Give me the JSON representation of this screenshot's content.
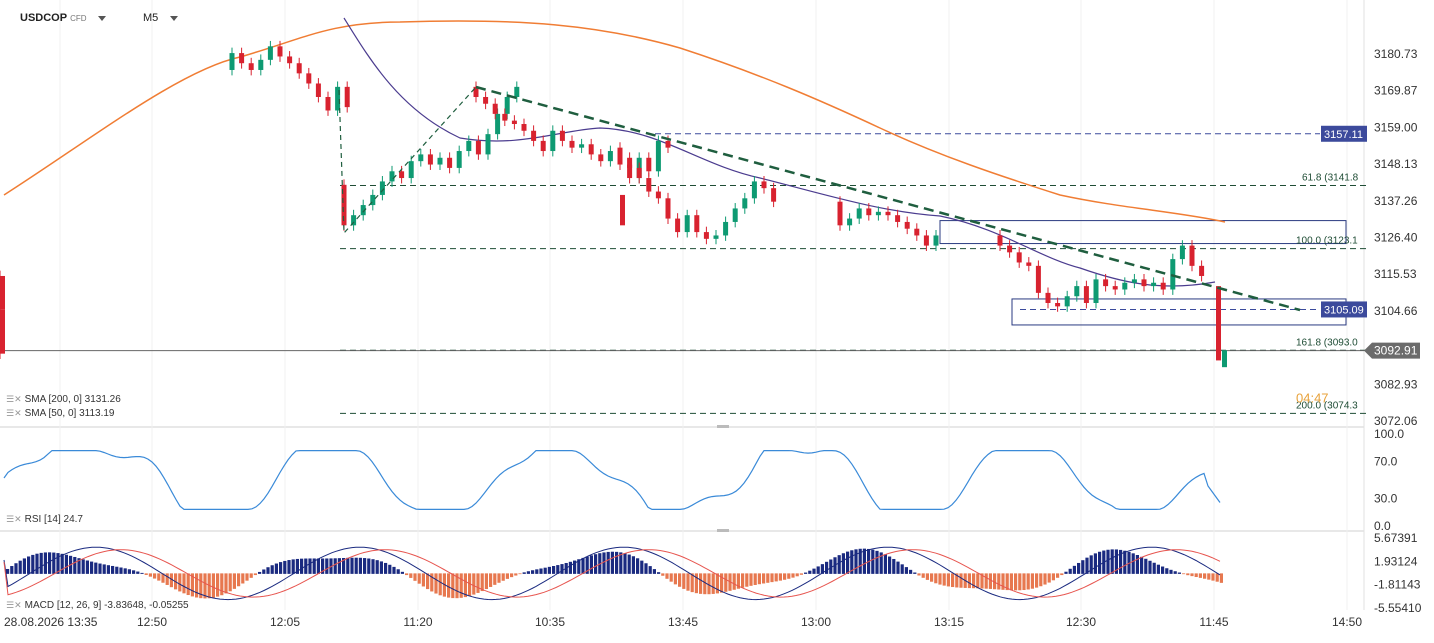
{
  "header": {
    "symbol": "USDCOP",
    "type": "CFD",
    "interval": "M5"
  },
  "indicators": {
    "sma200": "SMA [200, 0] 3131.26",
    "sma50": "SMA [50, 0] 3113.19",
    "rsi": "RSI [14] 24.7",
    "macd": "MACD [12, 26, 9] -3.83648, -0.05255"
  },
  "price_axis": [
    "3180.73",
    "3169.87",
    "3159.00",
    "3148.13",
    "3137.26",
    "3126.40",
    "3115.53",
    "3104.66",
    "3082.93",
    "3072.06"
  ],
  "rsi_axis": [
    "100.0",
    "70.0",
    "30.0",
    "0.0"
  ],
  "macd_axis": [
    "5.67391",
    "1.93124",
    "-1.81143",
    "-5.55410"
  ],
  "time_axis": [
    "28.08.2026 13:35",
    "12:50",
    "12:05",
    "11:20",
    "10:35",
    "13:45",
    "13:00",
    "13:15",
    "12:30",
    "11:45",
    "14:50"
  ],
  "current_price": "3092.91",
  "levels": {
    "l1": "3157.11",
    "l2": "3105.09",
    "fib618": "61.8 (3141.8",
    "fib100": "100.0 (3123.1",
    "fib1618": "161.8 (3093.0",
    "fib200": "200.0 (3074.3",
    "countdown": "04:47"
  },
  "colors": {
    "up": "#0e9a72",
    "down": "#d8222f",
    "sma200": "#f07d34",
    "sma50": "#4b3c8f",
    "trend": "#1f5e3f",
    "rsi": "#3a8ad8",
    "macd_pos": "#1a2a80",
    "macd_neg": "#e7784f",
    "box": "#2a3a80",
    "label_bg": "#3c4a9c"
  },
  "chart_data": {
    "type": "candlestick",
    "price_scale": [
      3072.06,
      3180.73
    ],
    "x_labels": [
      "28.08.2026 13:35",
      "12:50",
      "12:05",
      "11:20",
      "10:35",
      "13:45",
      "13:00",
      "13:15",
      "12:30",
      "11:45",
      "14:50"
    ],
    "close_series": [
      3181,
      3178,
      3176,
      3179,
      3183,
      3180,
      3178,
      3175,
      3172,
      3168,
      3164,
      3171,
      3165,
      3130,
      3133,
      3136,
      3139,
      3143,
      3146,
      3144,
      3149,
      3151,
      3148,
      3150,
      3147,
      3152,
      3155,
      3151,
      3157,
      3163,
      3168,
      3171,
      3168,
      3166,
      3163,
      3161,
      3160,
      3158,
      3155,
      3152,
      3158,
      3155,
      3153,
      3154,
      3151,
      3149,
      3152,
      3148,
      3144,
      3150,
      3146,
      3155,
      3153,
      3150,
      3147,
      3144,
      3140,
      3138,
      3132,
      3128,
      3133,
      3128,
      3126,
      3127,
      3131,
      3135,
      3138,
      3143,
      3141,
      3137,
      3130,
      3132,
      3135,
      3133,
      3134,
      3133,
      3131,
      3129,
      3127,
      3124,
      3127,
      3124,
      3122,
      3119,
      3118,
      3110,
      3107,
      3106,
      3109,
      3112,
      3107,
      3114,
      3112,
      3111,
      3113,
      3114,
      3112,
      3113,
      3111,
      3120,
      3124,
      3118,
      3115,
      3111,
      3105,
      3092
    ],
    "series": [
      {
        "name": "SMA [200, 0]",
        "last": 3131.26
      },
      {
        "name": "SMA [50, 0]",
        "last": 3113.19
      }
    ],
    "horizontal_levels": [
      3157.11,
      3141.8,
      3123.1,
      3105.09,
      3093.0,
      3074.3
    ],
    "rsi_last": 24.7,
    "macd_last": [
      -3.83648,
      -0.05255
    ]
  }
}
